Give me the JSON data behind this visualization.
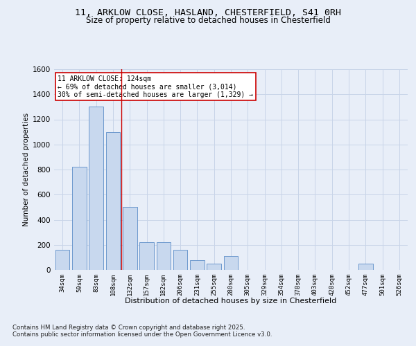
{
  "title_line1": "11, ARKLOW CLOSE, HASLAND, CHESTERFIELD, S41 0RH",
  "title_line2": "Size of property relative to detached houses in Chesterfield",
  "xlabel": "Distribution of detached houses by size in Chesterfield",
  "ylabel": "Number of detached properties",
  "categories": [
    "34sqm",
    "59sqm",
    "83sqm",
    "108sqm",
    "132sqm",
    "157sqm",
    "182sqm",
    "206sqm",
    "231sqm",
    "255sqm",
    "280sqm",
    "305sqm",
    "329sqm",
    "354sqm",
    "378sqm",
    "403sqm",
    "428sqm",
    "452sqm",
    "477sqm",
    "501sqm",
    "526sqm"
  ],
  "values": [
    160,
    820,
    1300,
    1100,
    500,
    220,
    220,
    160,
    75,
    50,
    110,
    0,
    0,
    0,
    0,
    0,
    0,
    0,
    50,
    0,
    0
  ],
  "bar_color": "#c8d8ee",
  "bar_edge_color": "#5b8dc8",
  "vline_color": "#cc0000",
  "annotation_text": "11 ARKLOW CLOSE: 124sqm\n← 69% of detached houses are smaller (3,014)\n30% of semi-detached houses are larger (1,329) →",
  "annotation_box_color": "#ffffff",
  "annotation_box_edge_color": "#cc0000",
  "ylim": [
    0,
    1600
  ],
  "yticks": [
    0,
    200,
    400,
    600,
    800,
    1000,
    1200,
    1400,
    1600
  ],
  "grid_color": "#c8d4e8",
  "plot_bg_color": "#e8eef8",
  "figure_bg_color": "#e8eef8",
  "footer_line1": "Contains HM Land Registry data © Crown copyright and database right 2025.",
  "footer_line2": "Contains public sector information licensed under the Open Government Licence v3.0."
}
